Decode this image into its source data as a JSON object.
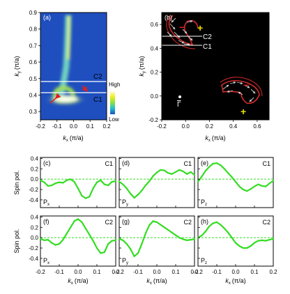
{
  "chart_data": [
    {
      "id": "a",
      "panel_label": "(a)",
      "type": "heatmap",
      "xlabel": "kx (π/a)",
      "ylabel": "ky (π/a)",
      "xlim": [
        -0.2,
        0.2
      ],
      "ylim": [
        0.25,
        0.9
      ],
      "xticks": [
        "-0.2",
        "-0.1",
        "0.0",
        "0.1",
        "0.2"
      ],
      "xtick_values": [
        -0.2,
        -0.1,
        0.0,
        0.1,
        0.2
      ],
      "yticks": [
        "0.3",
        "0.4",
        "0.5",
        "0.6",
        "0.7",
        "0.8",
        "0.9"
      ],
      "ytick_values": [
        0.3,
        0.4,
        0.5,
        0.6,
        0.7,
        0.8,
        0.9
      ],
      "cut_lines": [
        {
          "name": "C2",
          "ky": 0.47
        },
        {
          "name": "C1",
          "ky": 0.43
        }
      ],
      "colorbar": {
        "high": "High",
        "low": "Low"
      },
      "colors": {
        "background": "#1f4fbf",
        "intensity_high": "#ffffff",
        "intensity_mid": "#b8e04a",
        "arrow": "#e02020"
      }
    },
    {
      "id": "b",
      "panel_label": "(b)",
      "type": "vector",
      "xlabel": "kx (π/a)",
      "ylabel": "ky (π/a)",
      "xlim": [
        -0.2,
        0.7
      ],
      "ylim": [
        -0.2,
        0.7
      ],
      "xticks": [
        "-0.2",
        "0.0",
        "0.2",
        "0.4",
        "0.6"
      ],
      "xtick_values": [
        -0.2,
        0.0,
        0.2,
        0.4,
        0.6
      ],
      "yticks": [
        "-0.2",
        "0.0",
        "0.2",
        "0.4",
        "0.6"
      ],
      "ytick_values": [
        -0.2,
        0.0,
        0.2,
        0.4,
        0.6
      ],
      "cut_lines": [
        {
          "name": "C2",
          "ky": 0.55
        },
        {
          "name": "C1",
          "ky": 0.5
        }
      ],
      "point_label": "Γ",
      "sign_labels": [
        "+",
        "−",
        "−",
        "+"
      ],
      "colors": {
        "background": "#000000",
        "contour": "#d42a2a",
        "arrows": "#d0d0d0",
        "plus": "#f0e000",
        "minus": "#e02020"
      }
    },
    {
      "id": "c",
      "panel_label": "(c)",
      "cut": "C1",
      "component": "P",
      "component_sub": "x",
      "type": "line",
      "xlim": [
        -0.2,
        0.2
      ],
      "ylim": [
        -0.55,
        0.42
      ],
      "x": [
        -0.2,
        -0.18,
        -0.16,
        -0.14,
        -0.12,
        -0.1,
        -0.08,
        -0.06,
        -0.04,
        -0.02,
        0.0,
        0.02,
        0.04,
        0.06,
        0.08,
        0.1,
        0.12,
        0.14,
        0.16,
        0.18,
        0.2
      ],
      "y": [
        -0.02,
        -0.06,
        -0.13,
        -0.12,
        -0.08,
        -0.06,
        -0.07,
        -0.02,
        0.0,
        -0.05,
        -0.18,
        -0.32,
        -0.37,
        -0.34,
        -0.18,
        -0.06,
        -0.02,
        -0.1,
        -0.12,
        -0.05,
        -0.04
      ]
    },
    {
      "id": "d",
      "panel_label": "(d)",
      "cut": "C1",
      "component": "P",
      "component_sub": "y",
      "type": "line",
      "xlim": [
        -0.2,
        0.2
      ],
      "ylim": [
        -0.55,
        0.42
      ],
      "x": [
        -0.2,
        -0.18,
        -0.16,
        -0.14,
        -0.12,
        -0.1,
        -0.08,
        -0.06,
        -0.04,
        -0.02,
        0.0,
        0.02,
        0.04,
        0.06,
        0.08,
        0.1,
        0.12,
        0.14,
        0.16,
        0.18,
        0.2
      ],
      "y": [
        -0.05,
        -0.1,
        -0.18,
        -0.28,
        -0.36,
        -0.3,
        -0.22,
        -0.12,
        -0.04,
        0.06,
        0.13,
        0.18,
        0.17,
        0.12,
        0.1,
        0.14,
        0.18,
        0.15,
        0.1,
        0.14,
        0.08
      ]
    },
    {
      "id": "e",
      "panel_label": "(e)",
      "cut": "C1",
      "component": "P",
      "component_sub": "z",
      "type": "line",
      "xlim": [
        -0.2,
        0.2
      ],
      "ylim": [
        -0.55,
        0.42
      ],
      "x": [
        -0.2,
        -0.18,
        -0.16,
        -0.14,
        -0.12,
        -0.1,
        -0.08,
        -0.06,
        -0.04,
        -0.02,
        0.0,
        0.02,
        0.04,
        0.06,
        0.08,
        0.1,
        0.12,
        0.14,
        0.16,
        0.18,
        0.2
      ],
      "y": [
        -0.05,
        0.05,
        0.16,
        0.24,
        0.3,
        0.31,
        0.27,
        0.2,
        0.12,
        0.04,
        -0.05,
        -0.14,
        -0.2,
        -0.23,
        -0.19,
        -0.14,
        -0.1,
        -0.13,
        -0.14,
        -0.08,
        -0.03
      ]
    },
    {
      "id": "f",
      "panel_label": "(f)",
      "cut": "C2",
      "component": "P",
      "component_sub": "x",
      "type": "line",
      "xlim": [
        -0.2,
        0.2
      ],
      "ylim": [
        -0.55,
        0.42
      ],
      "x": [
        -0.2,
        -0.18,
        -0.16,
        -0.14,
        -0.12,
        -0.1,
        -0.08,
        -0.06,
        -0.04,
        -0.02,
        0.0,
        0.02,
        0.04,
        0.06,
        0.08,
        0.1,
        0.12,
        0.14,
        0.16,
        0.18,
        0.2
      ],
      "y": [
        -0.02,
        -0.05,
        -0.04,
        -0.1,
        -0.14,
        -0.12,
        -0.04,
        0.08,
        0.2,
        0.32,
        0.36,
        0.3,
        0.18,
        0.06,
        -0.06,
        -0.2,
        -0.3,
        -0.28,
        -0.12,
        -0.06,
        -0.05
      ]
    },
    {
      "id": "g",
      "panel_label": "(g)",
      "cut": "C2",
      "component": "P",
      "component_sub": "y",
      "type": "line",
      "xlim": [
        -0.2,
        0.2
      ],
      "ylim": [
        -0.55,
        0.42
      ],
      "x": [
        -0.2,
        -0.18,
        -0.16,
        -0.14,
        -0.12,
        -0.1,
        -0.08,
        -0.06,
        -0.04,
        -0.02,
        0.0,
        0.02,
        0.04,
        0.06,
        0.08,
        0.1,
        0.12,
        0.14,
        0.16,
        0.18,
        0.2
      ],
      "y": [
        -0.02,
        -0.05,
        -0.12,
        -0.22,
        -0.36,
        -0.3,
        -0.12,
        0.08,
        0.24,
        0.32,
        0.3,
        0.25,
        0.2,
        0.15,
        0.1,
        0.05,
        0.0,
        -0.03,
        -0.05,
        -0.04,
        -0.03
      ]
    },
    {
      "id": "h",
      "panel_label": "(h)",
      "cut": "C2",
      "component": "P",
      "component_sub": "z",
      "type": "line",
      "xlim": [
        -0.2,
        0.2
      ],
      "ylim": [
        -0.55,
        0.42
      ],
      "x": [
        -0.2,
        -0.18,
        -0.16,
        -0.14,
        -0.12,
        -0.1,
        -0.08,
        -0.06,
        -0.04,
        -0.02,
        0.0,
        0.02,
        0.04,
        0.06,
        0.08,
        0.1,
        0.12,
        0.14,
        0.16,
        0.18,
        0.2
      ],
      "y": [
        0.0,
        0.04,
        0.12,
        0.22,
        0.28,
        0.3,
        0.25,
        0.18,
        0.1,
        0.0,
        -0.1,
        -0.16,
        -0.2,
        -0.2,
        -0.16,
        -0.1,
        -0.06,
        -0.05,
        -0.06,
        -0.04,
        -0.02
      ]
    }
  ],
  "line_panels": {
    "xlabel": "kx (π/a)",
    "ylabel": "Spin pol.",
    "xticks": [
      "-0.2",
      "-0.1",
      "0.0",
      "0.1",
      "0.2"
    ],
    "xtick_values": [
      -0.2,
      -0.1,
      0.0,
      0.1,
      0.2
    ],
    "yticks": [
      "0.4",
      "0.2",
      "0.0",
      "-0.2",
      "-0.4"
    ],
    "ytick_values": [
      0.4,
      0.2,
      0.0,
      -0.2,
      -0.4
    ],
    "series_color": "#33dd22",
    "zero_line_color": "#33dd22"
  },
  "axis_text": {
    "k": "k",
    "x_sub": "x",
    "y_sub": "y",
    "unit": "(π/a)"
  }
}
